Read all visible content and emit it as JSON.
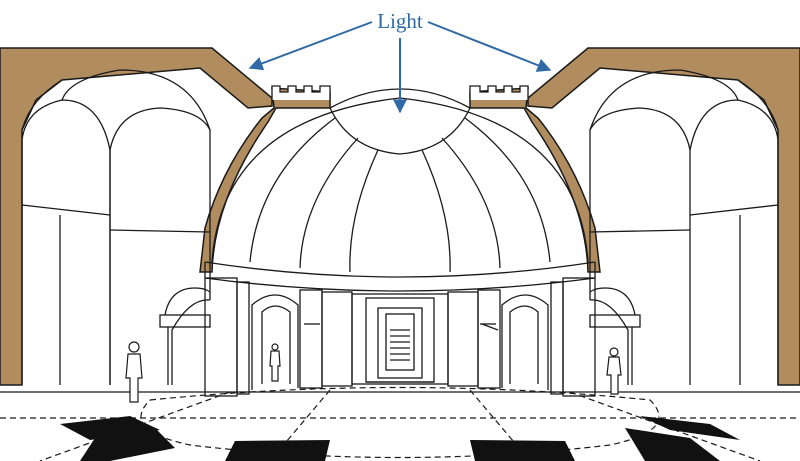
{
  "diagram": {
    "label": "Light",
    "colors": {
      "section_fill": "#b08c5e",
      "line": "#1a1a1a",
      "arrow": "#2f6aa6",
      "floor_mark": "#111111",
      "background": "#ffffff"
    }
  }
}
